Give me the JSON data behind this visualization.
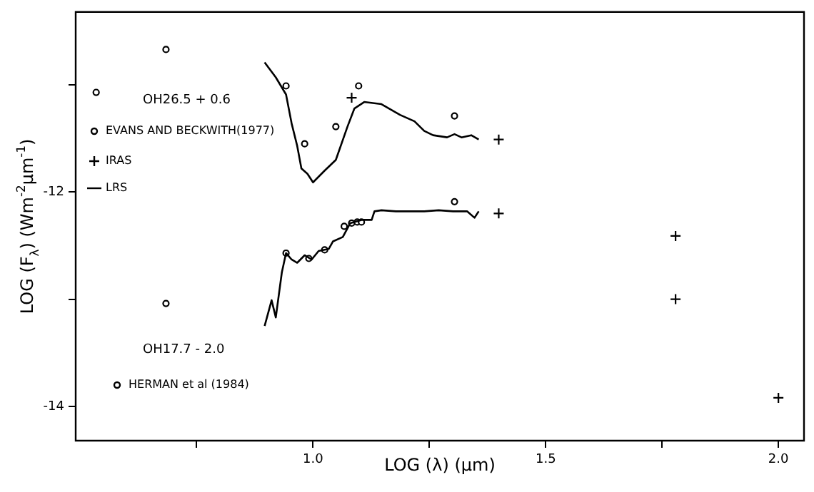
{
  "chart_data": {
    "type": "scatter",
    "xlabel": "LOG (λ) (μm)",
    "ylabel": "LOG (F$_{λ}$) (Wm$^{-2}$μm$^{-1}$)",
    "xlim": [
      0.49,
      2.055
    ],
    "ylim": [
      -14.32,
      -10.32
    ],
    "xticks": [
      {
        "value": 0.75,
        "label": null
      },
      {
        "value": 1,
        "label": "1.0"
      },
      {
        "value": 1.25,
        "label": null
      },
      1.5,
      {
        "value": 1.75,
        "label": null
      },
      {
        "value": 2,
        "label": "2.0"
      }
    ],
    "yticks": [
      -14,
      {
        "value": -13,
        "label": null
      },
      -12,
      {
        "value": -11,
        "label": null
      }
    ],
    "grid": false,
    "legend": "left",
    "annotations": [
      "OH26.5 + 0.6",
      "OH17.7 - 2.0"
    ],
    "series": [
      {
        "name": "EVANS AND BECKWITH(1977)",
        "marker": "circle",
        "color": "#000000",
        "x": [
          0.534,
          0.684,
          0.942,
          0.982,
          1.049,
          1.098,
          1.304
        ],
        "values": [
          -11.07,
          -10.67,
          -11.01,
          -11.55,
          -11.39,
          -11.01,
          -11.29
        ]
      },
      {
        "name": "IRAS",
        "marker": "cross",
        "color": "#000000",
        "x": [
          1.083,
          1.399,
          1.399,
          1.779,
          1.779,
          2.0
        ],
        "values": [
          -11.12,
          -11.51,
          -12.2,
          -12.41,
          -13.0,
          -13.92
        ]
      },
      {
        "name": "LRS",
        "type": "line",
        "marker": "none",
        "color": "#000000",
        "x": [
          0.896,
          0.92,
          0.942,
          0.954,
          0.966,
          0.975,
          0.988,
          1.0,
          1.025,
          1.049,
          1.074,
          1.089,
          1.11,
          1.147,
          1.187,
          1.218,
          1.239,
          1.258,
          1.288,
          1.304,
          1.319,
          1.34,
          1.356
        ],
        "values": [
          -10.79,
          -10.93,
          -11.09,
          -11.36,
          -11.57,
          -11.78,
          -11.83,
          -11.91,
          -11.8,
          -11.7,
          -11.39,
          -11.22,
          -11.16,
          -11.18,
          -11.28,
          -11.34,
          -11.43,
          -11.47,
          -11.49,
          -11.46,
          -11.49,
          -11.47,
          -11.51
        ]
      },
      {
        "type": "line",
        "marker": "none",
        "color": "#000000",
        "x": [
          0.896,
          0.911,
          0.92,
          0.933,
          0.942,
          0.954,
          0.966,
          0.982,
          0.997,
          1.012,
          1.034,
          1.043,
          1.064,
          1.08,
          1.104,
          1.126,
          1.132,
          1.147,
          1.178,
          1.209,
          1.239,
          1.27,
          1.301,
          1.331,
          1.347,
          1.356
        ],
        "values": [
          -13.25,
          -13.01,
          -13.17,
          -12.75,
          -12.57,
          -12.63,
          -12.66,
          -12.59,
          -12.63,
          -12.55,
          -12.53,
          -12.46,
          -12.42,
          -12.29,
          -12.26,
          -12.26,
          -12.18,
          -12.17,
          -12.18,
          -12.18,
          -12.18,
          -12.17,
          -12.18,
          -12.18,
          -12.24,
          -12.18
        ]
      },
      {
        "name": "HERMAN et al (1984)",
        "marker": "circle",
        "color": "#000000",
        "x": [
          0.684,
          0.942,
          0.991,
          1.025,
          1.067,
          1.083,
          1.095,
          1.104,
          1.304
        ],
        "values": [
          -13.04,
          -12.57,
          -12.62,
          -12.54,
          -12.32,
          -12.29,
          -12.28,
          -12.28,
          -12.09
        ]
      }
    ]
  }
}
